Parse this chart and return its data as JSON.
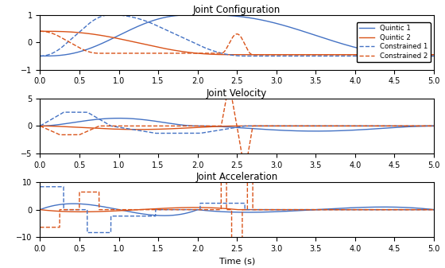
{
  "title1": "Joint Configuration",
  "title2": "Joint Velocity",
  "title3": "Joint Acceleration",
  "xlabel": "Time (s)",
  "xlim": [
    0,
    5
  ],
  "ylim1": [
    -1,
    1
  ],
  "ylim2": [
    -5,
    5
  ],
  "ylim3": [
    -10,
    10
  ],
  "yticks1": [
    -1,
    0,
    1
  ],
  "yticks2": [
    -5,
    0,
    5
  ],
  "yticks3": [
    -10,
    0,
    10
  ],
  "color_blue": "#4472c4",
  "color_orange": "#d95319",
  "legend_labels": [
    "Quintic 1",
    "Quintic 2",
    "Constrained 1",
    "Constrained 2"
  ]
}
